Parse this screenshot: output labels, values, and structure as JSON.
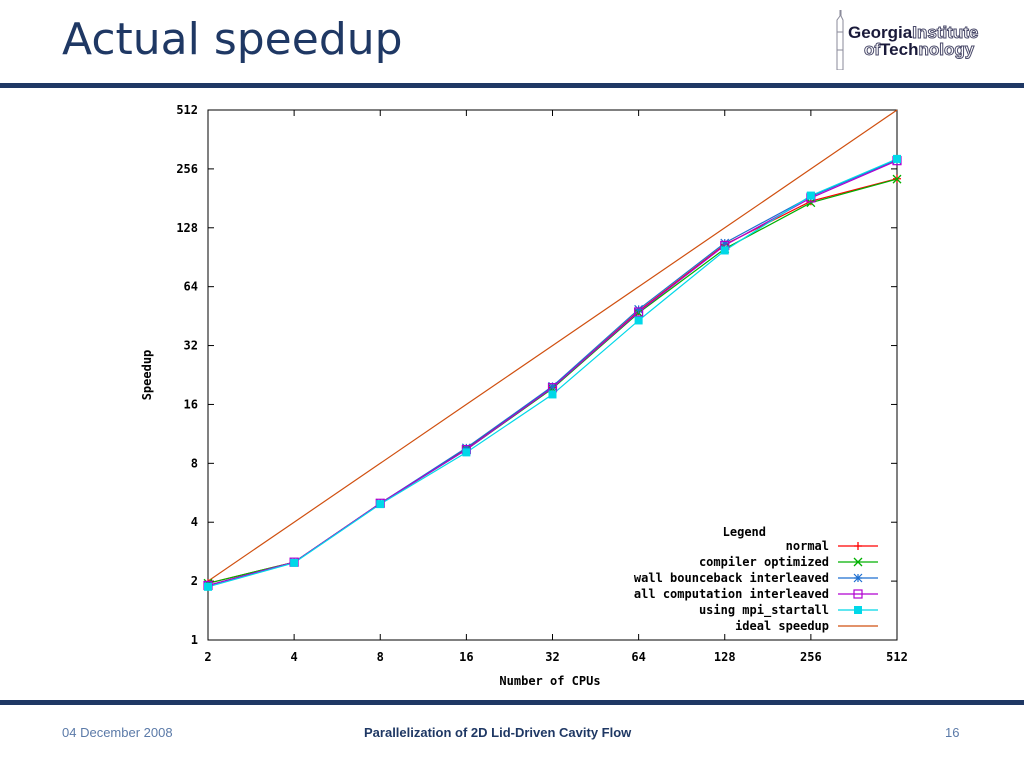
{
  "slide": {
    "title": "Actual speedup",
    "footer_date": "04 December 2008",
    "footer_title": "Parallelization of 2D Lid-Driven Cavity Flow",
    "page_number": "16",
    "title_color": "#1f3864"
  },
  "logo": {
    "line1_dark": "Georgia",
    "line1_light": "Institute",
    "line2_light": "of",
    "line2_dark": "Tech",
    "line2_light2": "nology"
  },
  "chart_data": {
    "type": "line",
    "title": "",
    "xlabel": "Number of CPUs",
    "ylabel": "Speedup",
    "xscale": "log2",
    "yscale": "log2",
    "xlim": [
      2,
      512
    ],
    "ylim": [
      1,
      512
    ],
    "x_ticks": [
      "2",
      "4",
      "8",
      "16",
      "32",
      "64",
      "128",
      "256",
      "512"
    ],
    "y_ticks": [
      "1",
      "2",
      "4",
      "8",
      "16",
      "32",
      "64",
      "128",
      "256",
      "512"
    ],
    "grid": false,
    "legend": {
      "title": "Legend",
      "placement": "bottom-right"
    },
    "x": [
      2,
      4,
      8,
      16,
      32,
      64,
      128,
      256,
      512
    ],
    "series": [
      {
        "name": "normal",
        "color": "#ff0000",
        "marker": "plus",
        "values": [
          1.95,
          2.5,
          5.0,
          9.5,
          19.5,
          48,
          105,
          175,
          228
        ]
      },
      {
        "name": "compiler optimized",
        "color": "#00b000",
        "marker": "x",
        "values": [
          1.95,
          2.5,
          5.0,
          9.4,
          19.3,
          47,
          100,
          172,
          227
        ]
      },
      {
        "name": "wall bounceback interleaved",
        "color": "#1e6fd0",
        "marker": "star",
        "values": [
          1.9,
          2.5,
          5.0,
          9.6,
          19.8,
          49,
          107,
          185,
          285
        ]
      },
      {
        "name": "all computation interleaved",
        "color": "#b000d0",
        "marker": "square-open",
        "values": [
          1.9,
          2.5,
          5.0,
          9.4,
          19.5,
          47.5,
          104,
          182,
          282
        ]
      },
      {
        "name": "using mpi_startall",
        "color": "#00d8e8",
        "marker": "square-filled",
        "values": [
          1.87,
          2.48,
          4.95,
          9.1,
          18.0,
          43,
          98,
          187,
          288
        ]
      },
      {
        "name": "ideal speedup",
        "color": "#d05010",
        "marker": "none",
        "values": [
          2,
          4,
          8,
          16,
          32,
          64,
          128,
          256,
          512
        ]
      }
    ]
  }
}
